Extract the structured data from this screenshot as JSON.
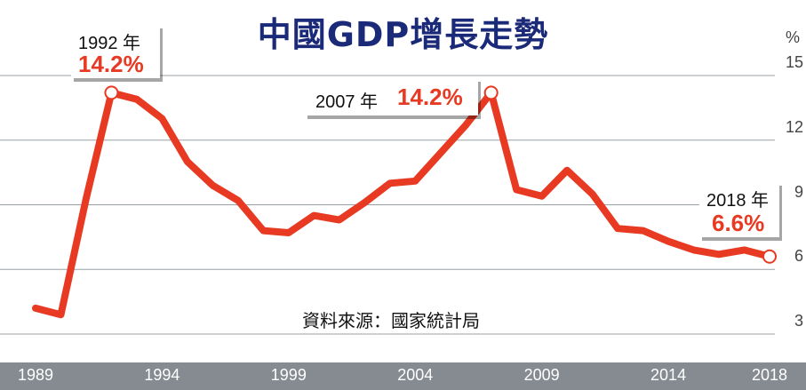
{
  "title": "中國GDP增長走勢",
  "source": "資料來源：國家統計局",
  "unit": "%",
  "colors": {
    "line": "#e83a22",
    "title": "#1b2a78",
    "axis_bar": "#858b90",
    "grid": "#9aa0a5"
  },
  "callouts": [
    {
      "year_label": "1992 年",
      "value_label": "14.2%"
    },
    {
      "year_label": "2007 年",
      "value_label": "14.2%"
    },
    {
      "year_label": "2018 年",
      "value_label": "6.6%"
    }
  ],
  "chart_data": {
    "type": "line",
    "title": "中國GDP增長走勢",
    "ylabel": "%",
    "ylim": [
      3,
      15
    ],
    "yticks": [
      3,
      6,
      9,
      12,
      15
    ],
    "xticks": [
      1989,
      1994,
      1999,
      2004,
      2009,
      2014,
      2018
    ],
    "grid": true,
    "x": [
      1989,
      1990,
      1991,
      1992,
      1993,
      1994,
      1995,
      1996,
      1997,
      1998,
      1999,
      2000,
      2001,
      2002,
      2003,
      2004,
      2005,
      2006,
      2007,
      2008,
      2009,
      2010,
      2011,
      2012,
      2013,
      2014,
      2015,
      2016,
      2017,
      2018
    ],
    "series": [
      {
        "values": [
          4.2,
          3.9,
          9.3,
          14.2,
          13.9,
          13.0,
          11.0,
          9.9,
          9.2,
          7.8,
          7.7,
          8.5,
          8.3,
          9.1,
          10.0,
          10.1,
          11.4,
          12.7,
          14.2,
          9.7,
          9.4,
          10.6,
          9.5,
          7.9,
          7.8,
          7.3,
          6.9,
          6.7,
          6.9,
          6.6
        ]
      }
    ],
    "highlights": [
      {
        "x": 1992,
        "y": 14.2
      },
      {
        "x": 2007,
        "y": 14.2
      },
      {
        "x": 2018,
        "y": 6.6
      }
    ]
  }
}
